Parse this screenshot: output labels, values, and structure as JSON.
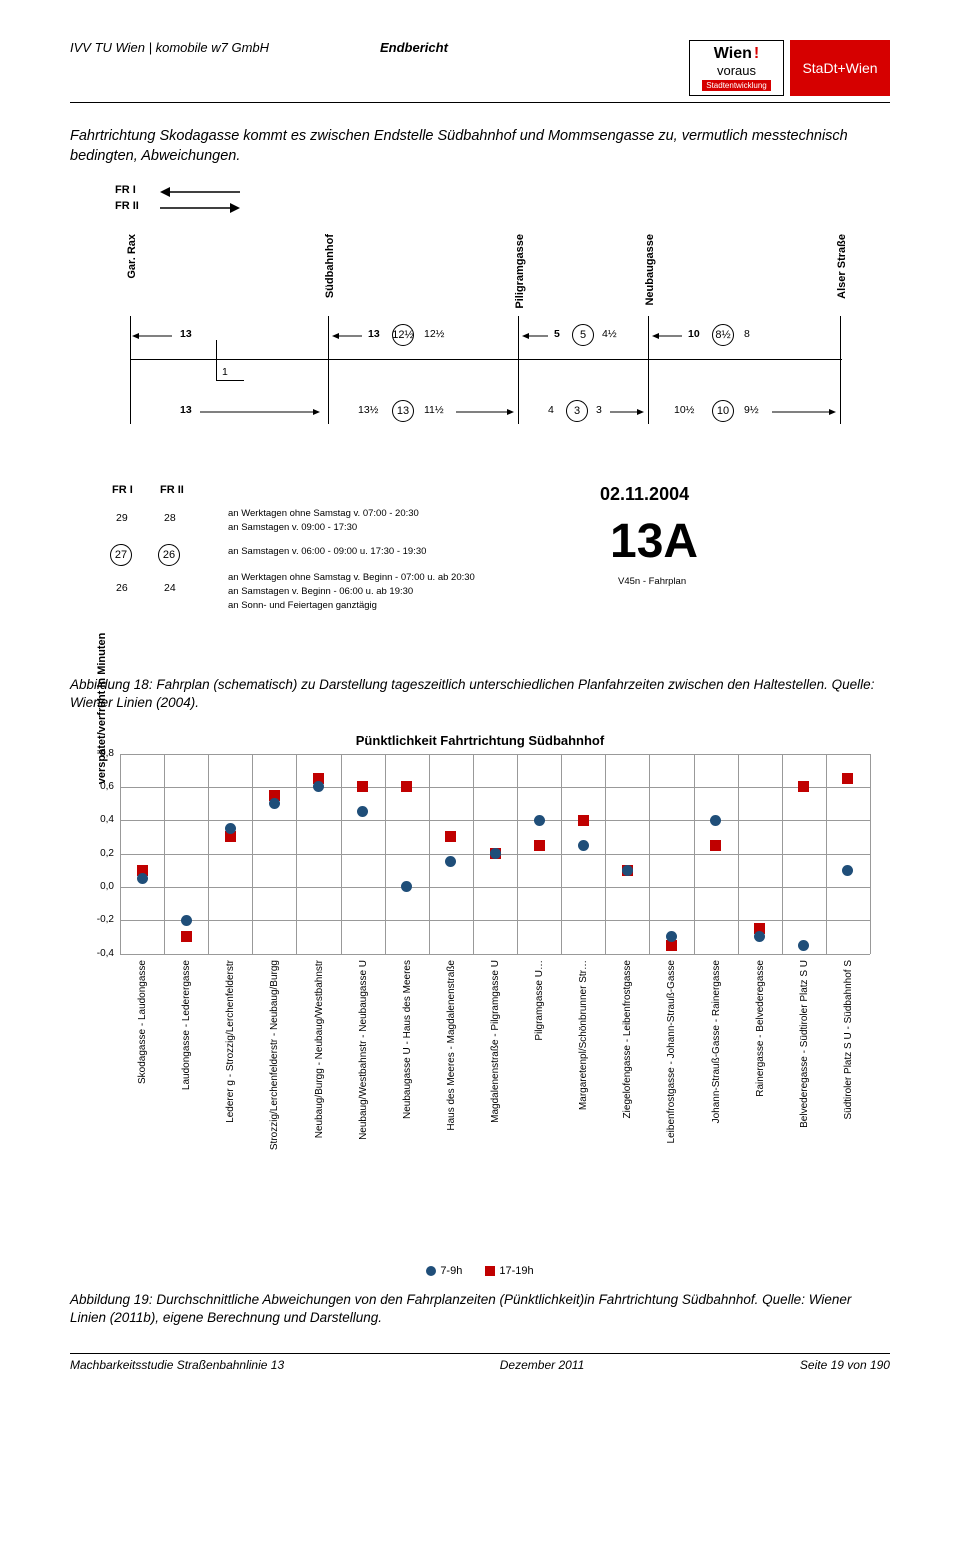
{
  "header": {
    "left": "IVV TU Wien | komobile w7 GmbH",
    "mid": "Endbericht",
    "logo1": {
      "top": "Wien",
      "exc": "!",
      "sub": "voraus",
      "bar": "Stadtentwicklung"
    },
    "logo2": "StaDt+Wien"
  },
  "intro_para": "Fahrtrichtung Skodagasse kommt es zwischen Endstelle Südbahnhof und Mommsengasse zu, vermutlich messtechnisch bedingten, Abweichungen.",
  "schematic": {
    "fr1": "FR I",
    "fr2": "FR II",
    "stops": [
      "Gar. Rax",
      "Südbahnhof",
      "Piligramgasse",
      "Neubaugasse",
      "Alser Straße"
    ],
    "row1_nums": [
      "13",
      "13",
      "12½",
      "12½",
      "5",
      "5",
      "4½",
      "10",
      "8½",
      "8"
    ],
    "row2_nums": [
      "13",
      "13½",
      "13",
      "11½",
      "4",
      "3",
      "3",
      "10½",
      "10",
      "9½"
    ],
    "date": "02.11.2004",
    "line_no": "13A",
    "plan": "V45n - Fahrplan",
    "freq_col1": [
      "29",
      "27",
      "26"
    ],
    "freq_col2": [
      "28",
      "26",
      "24"
    ],
    "notes": [
      "an Werktagen ohne Samstag v. 07:00 - 20:30",
      "an Samstagen v. 09:00 - 17:30",
      "an Samstagen v. 06:00 - 09:00 u. 17:30 - 19:30",
      "an Werktagen ohne Samstag v. Beginn - 07:00 u. ab 20:30",
      "an Samstagen v. Beginn - 06:00 u. ab 19:30",
      "an Sonn- und Feiertagen ganztägig"
    ]
  },
  "caption18": "Abbildung 18: Fahrplan (schematisch) zu Darstellung tageszeitlich unterschiedlichen Planfahrzeiten zwischen den Haltestellen. Quelle: Wiener Linien (2004).",
  "chart": {
    "title": "Pünktlichkeit Fahrtrichtung Südbahnhof",
    "ylabel": "verspätet/verfrüht in Minuten",
    "ylim": [
      -0.4,
      0.8
    ],
    "ytick_step": 0.2,
    "yticks": [
      "0,8",
      "0,6",
      "0,4",
      "0,2",
      "0,0",
      "-0,2",
      "-0,4"
    ],
    "categories": [
      "Skodagasse - Laudongasse",
      "Laudongasse - Lederergasse",
      "Lederer g - Strozzig/Lerchenfelderstr",
      "Strozzig/Lerchenfelderstr - Neubaug/Burgg",
      "Neubaug/Burgg - Neubaug/Westbahnstr",
      "Neubaug/Westbahnstr - Neubaugasse U",
      "Neubaugasse U - Haus des Meeres",
      "Haus des Meeres - Magdalenenstraße",
      "Magdalenenstraße - Pilgramgasse U",
      "Pilgramgasse U…",
      "Margaretenpl/Schönbrunner Str…",
      "Ziegelofengasse - Leibenfrostgasse",
      "Leibenfrostgasse - Johann-Strauß-Gasse",
      "Johann-Strauß-Gasse - Rainergasse",
      "Rainergasse - Belvederegasse",
      "Belvederegasse - Südtiroler Platz S U",
      "Südtiroler Platz S U - Südbahnhof S"
    ],
    "series_blue": {
      "label": "7-9h",
      "color": "#1f4e79",
      "values": [
        0.05,
        -0.2,
        0.35,
        0.5,
        0.6,
        0.45,
        0.0,
        0.15,
        0.2,
        0.4,
        0.25,
        0.1,
        -0.3,
        0.4,
        -0.3,
        -0.35,
        0.1
      ]
    },
    "series_red": {
      "label": "17-19h",
      "color": "#c00000",
      "values": [
        0.1,
        -0.3,
        0.3,
        0.55,
        0.65,
        0.6,
        0.6,
        0.3,
        0.2,
        0.25,
        0.4,
        0.1,
        -0.35,
        0.25,
        -0.25,
        0.6,
        0.65
      ]
    },
    "grid_color": "#999999",
    "background_color": "#ffffff"
  },
  "caption19": "Abbildung 19: Durchschnittliche Abweichungen von den Fahrplanzeiten (Pünktlichkeit)in Fahrtrichtung Südbahnhof. Quelle: Wiener Linien (2011b), eigene Berechnung und Darstellung.",
  "footer": {
    "left": "Machbarkeitsstudie Straßenbahnlinie 13",
    "mid": "Dezember 2011",
    "right": "Seite 19 von 190"
  }
}
